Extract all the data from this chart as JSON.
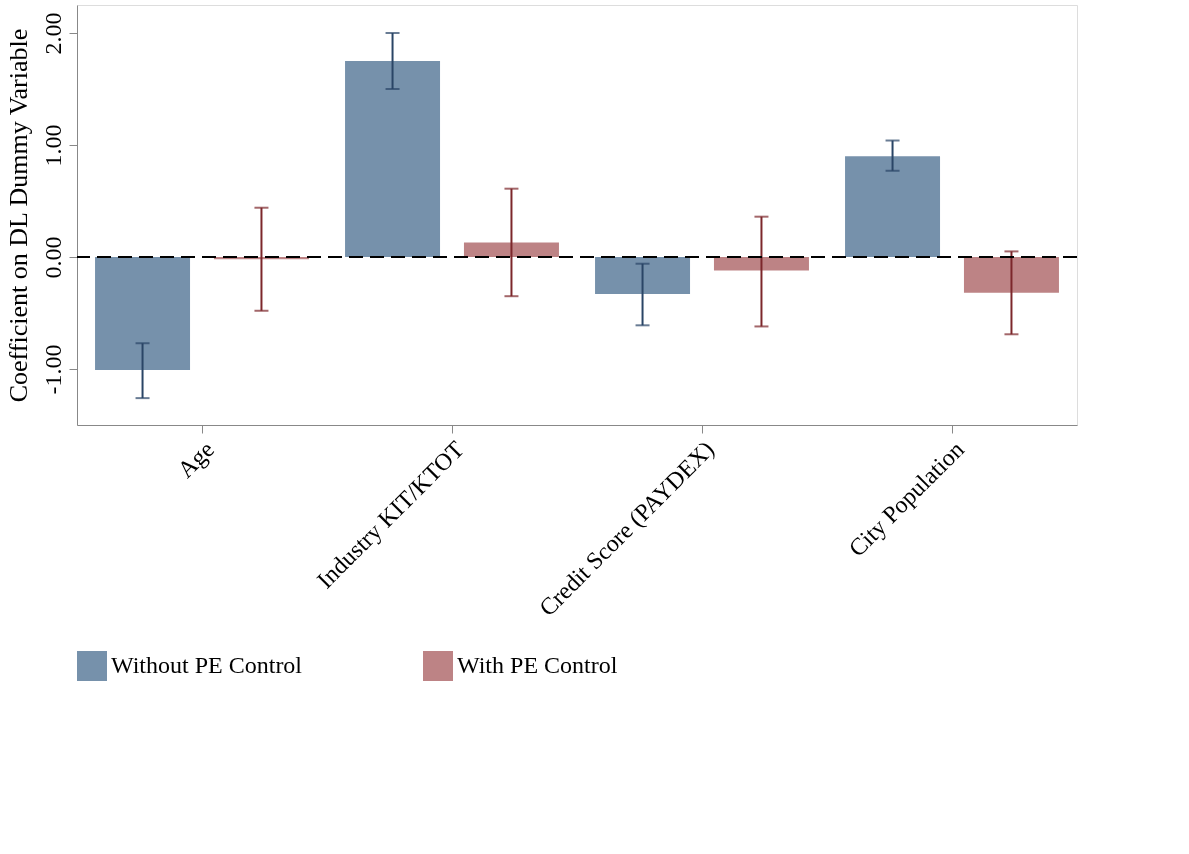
{
  "chart_data": {
    "type": "bar",
    "ylabel": "Coefficient on DL Dummy Variable",
    "categories": [
      "Age",
      "Industry KIT/KTOT",
      "Credit Score (PAYDEX)",
      "City Population"
    ],
    "series": [
      {
        "name": "Without PE Control",
        "color": "#7691ab",
        "values": [
          -1.01,
          1.75,
          -0.33,
          0.9
        ],
        "errors": [
          [
            -1.26,
            -0.77
          ],
          [
            1.5,
            2.0
          ],
          [
            -0.61,
            -0.06
          ],
          [
            0.77,
            1.04
          ]
        ]
      },
      {
        "name": "With PE Control",
        "color": "#bd8385",
        "values": [
          -0.02,
          0.13,
          -0.12,
          -0.32
        ],
        "errors": [
          [
            -0.48,
            0.44
          ],
          [
            -0.35,
            0.61
          ],
          [
            -0.62,
            0.36
          ],
          [
            -0.69,
            0.05
          ]
        ]
      }
    ],
    "ylim": [
      -1.5,
      2.25
    ],
    "yticks": [
      {
        "value": -1,
        "label": "-1.00"
      },
      {
        "value": 0,
        "label": "0.00"
      },
      {
        "value": 1,
        "label": "1.00"
      },
      {
        "value": 2,
        "label": "2.00"
      }
    ],
    "ref_lines": [
      {
        "axis": "y",
        "value": 0,
        "line_style": "dashed",
        "color": "#000000"
      }
    ],
    "grid": false,
    "legend": "bottom"
  }
}
